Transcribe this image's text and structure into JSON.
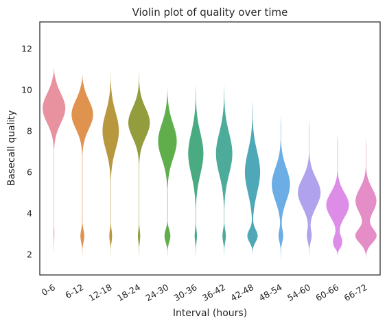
{
  "chart_data": {
    "type": "violin",
    "title": "Violin plot of quality over time",
    "xlabel": "Interval (hours)",
    "ylabel": "Basecall quality",
    "ylim": [
      1.0,
      13.3
    ],
    "yticks": [
      2,
      4,
      6,
      8,
      10,
      12
    ],
    "grid": false,
    "categories": [
      "0-6",
      "6-12",
      "12-18",
      "18-24",
      "24-30",
      "30-36",
      "36-42",
      "42-48",
      "48-54",
      "54-60",
      "60-66",
      "66-72"
    ],
    "colors": [
      "#E8919F",
      "#E0924F",
      "#B8983F",
      "#949D3D",
      "#5FAE4B",
      "#4AAB83",
      "#4DAB9A",
      "#4FA8B7",
      "#6BADE4",
      "#B0A2EC",
      "#DD8DE8",
      "#E48DC6"
    ],
    "series": [
      {
        "range": [
          2.0,
          11.2
        ],
        "peaks": [
          {
            "center": 9.1,
            "width": 0.72,
            "weight": 1.0
          },
          {
            "center": 3.0,
            "width": 0.3,
            "weight": 0.035
          }
        ]
      },
      {
        "range": [
          1.8,
          10.9
        ],
        "peaks": [
          {
            "center": 8.8,
            "width": 0.7,
            "weight": 0.95
          },
          {
            "center": 2.9,
            "width": 0.3,
            "weight": 0.17
          }
        ]
      },
      {
        "range": [
          1.9,
          10.9
        ],
        "peaks": [
          {
            "center": 8.0,
            "width": 0.9,
            "weight": 0.72
          },
          {
            "center": 2.9,
            "width": 0.3,
            "weight": 0.12
          }
        ]
      },
      {
        "range": [
          1.8,
          11.0
        ],
        "peaks": [
          {
            "center": 8.4,
            "width": 0.72,
            "weight": 0.95
          },
          {
            "center": 2.9,
            "width": 0.3,
            "weight": 0.1
          }
        ]
      },
      {
        "range": [
          1.8,
          10.2
        ],
        "peaks": [
          {
            "center": 7.5,
            "width": 0.85,
            "weight": 0.82
          },
          {
            "center": 2.9,
            "width": 0.3,
            "weight": 0.26
          }
        ]
      },
      {
        "range": [
          1.8,
          10.3
        ],
        "peaks": [
          {
            "center": 6.9,
            "width": 1.0,
            "weight": 0.67
          },
          {
            "center": 2.9,
            "width": 0.3,
            "weight": 0.1
          }
        ]
      },
      {
        "range": [
          1.8,
          10.3
        ],
        "peaks": [
          {
            "center": 6.9,
            "width": 1.0,
            "weight": 0.72
          },
          {
            "center": 2.9,
            "width": 0.3,
            "weight": 0.15
          }
        ]
      },
      {
        "range": [
          1.9,
          9.5
        ],
        "peaks": [
          {
            "center": 6.0,
            "width": 1.0,
            "weight": 0.67
          },
          {
            "center": 2.9,
            "width": 0.3,
            "weight": 0.45
          }
        ]
      },
      {
        "range": [
          1.7,
          8.8
        ],
        "peaks": [
          {
            "center": 5.4,
            "width": 0.8,
            "weight": 0.8
          },
          {
            "center": 2.9,
            "width": 0.3,
            "weight": 0.2
          }
        ]
      },
      {
        "range": [
          1.8,
          8.6
        ],
        "peaks": [
          {
            "center": 5.0,
            "width": 0.7,
            "weight": 1.0
          },
          {
            "center": 2.9,
            "width": 0.3,
            "weight": 0.2
          }
        ]
      },
      {
        "range": [
          1.9,
          7.9
        ],
        "peaks": [
          {
            "center": 4.4,
            "width": 0.6,
            "weight": 1.0
          },
          {
            "center": 2.6,
            "width": 0.3,
            "weight": 0.4
          }
        ]
      },
      {
        "range": [
          1.7,
          7.7
        ],
        "peaks": [
          {
            "center": 4.6,
            "width": 0.6,
            "weight": 0.92
          },
          {
            "center": 2.9,
            "width": 0.35,
            "weight": 0.92
          }
        ]
      }
    ]
  }
}
